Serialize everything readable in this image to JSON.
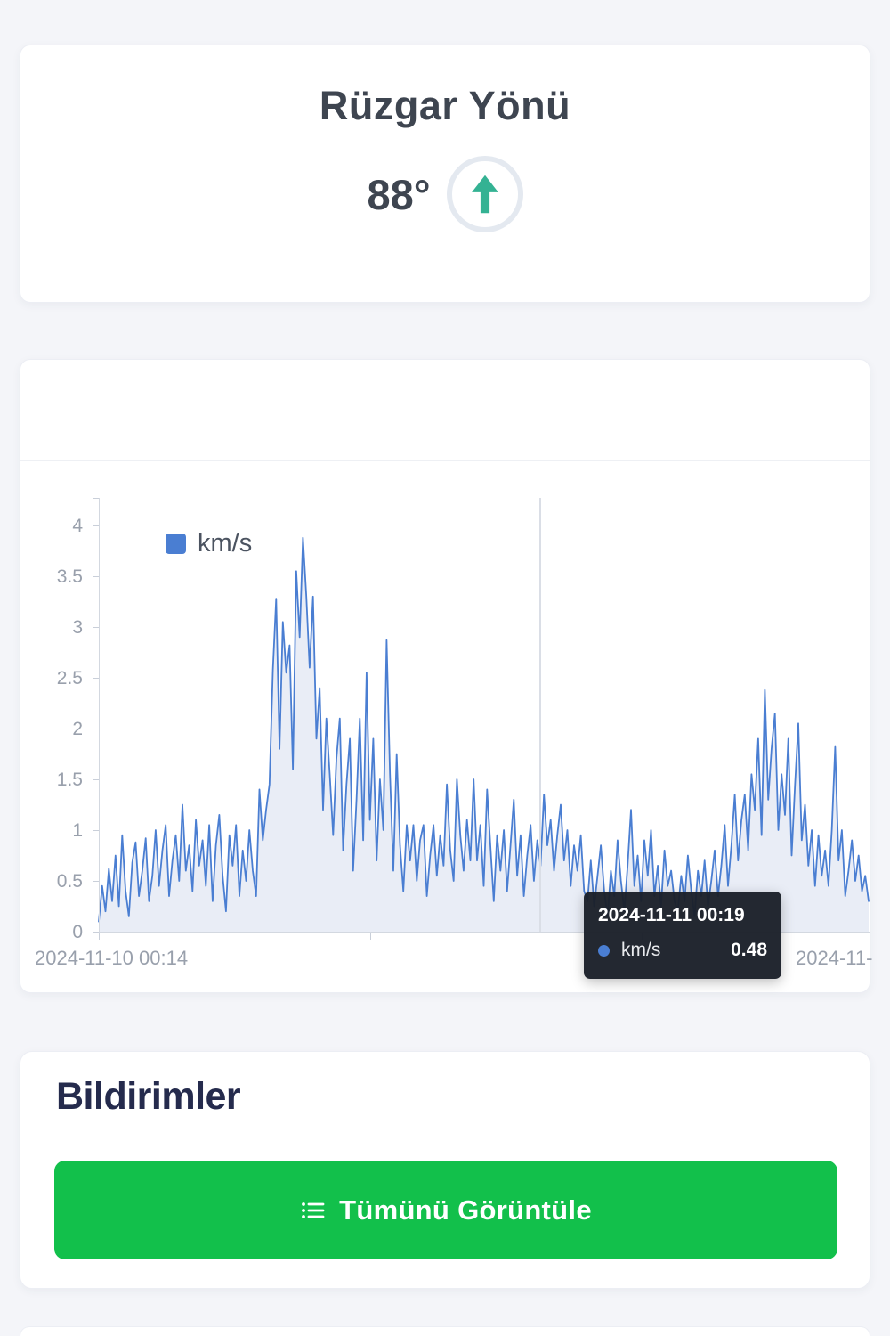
{
  "colors": {
    "page_bg": "#f4f5f9",
    "accent_blue": "#4a7ed2",
    "area_fill": "#e9edf6",
    "teal_arrow": "#34b293",
    "button_green": "#12c04b",
    "tooltip_bg": "#1a1f29",
    "dark_navy": "#252b4d"
  },
  "wind_card": {
    "title": "Rüzgar Yönü",
    "degrees": "88°",
    "arrow_icon": "up-arrow-icon"
  },
  "chart_data": {
    "type": "area",
    "title": "",
    "legend_label": "km/s",
    "legend_position": "top-left-inside",
    "grid": false,
    "ylim": [
      0,
      4
    ],
    "y_ticks": [
      0,
      0.5,
      1,
      1.5,
      2,
      2.5,
      3,
      3.5,
      4
    ],
    "y_tick_labels": [
      "0",
      "0.5",
      "1",
      "1.5",
      "2",
      "2.5",
      "3",
      "3.5",
      "4"
    ],
    "x_axis_labels": {
      "left": "2024-11-10 00:14",
      "right": "2024-11-"
    },
    "tooltip": {
      "title": "2024-11-11 00:19",
      "series": "km/s",
      "value": "0.48"
    },
    "series": [
      {
        "name": "km/s",
        "color": "#4a7ed2",
        "fill": "#e9edf6",
        "values": [
          0.1,
          0.45,
          0.2,
          0.62,
          0.3,
          0.75,
          0.25,
          0.95,
          0.4,
          0.15,
          0.68,
          0.88,
          0.35,
          0.6,
          0.92,
          0.3,
          0.55,
          1.0,
          0.45,
          0.8,
          1.05,
          0.35,
          0.7,
          0.95,
          0.5,
          1.25,
          0.6,
          0.85,
          0.4,
          1.1,
          0.65,
          0.9,
          0.45,
          1.05,
          0.3,
          0.85,
          1.15,
          0.55,
          0.2,
          0.95,
          0.65,
          1.05,
          0.35,
          0.8,
          0.5,
          1.0,
          0.6,
          0.35,
          1.4,
          0.9,
          1.2,
          1.45,
          2.58,
          3.28,
          1.8,
          3.05,
          2.55,
          2.82,
          1.6,
          3.55,
          2.9,
          3.88,
          3.3,
          2.6,
          3.3,
          1.9,
          2.4,
          1.2,
          2.1,
          1.55,
          0.95,
          1.7,
          2.1,
          0.8,
          1.45,
          1.9,
          0.6,
          1.3,
          2.1,
          0.9,
          2.55,
          1.1,
          1.9,
          0.7,
          1.5,
          1.0,
          2.87,
          1.55,
          0.6,
          1.75,
          0.85,
          0.4,
          1.05,
          0.7,
          1.05,
          0.5,
          0.9,
          1.05,
          0.35,
          0.75,
          1.05,
          0.55,
          0.95,
          0.65,
          1.45,
          0.8,
          0.5,
          1.5,
          0.95,
          0.6,
          1.1,
          0.7,
          1.5,
          0.7,
          1.05,
          0.45,
          1.4,
          0.85,
          0.3,
          0.95,
          0.6,
          1.0,
          0.4,
          0.85,
          1.3,
          0.55,
          0.95,
          0.35,
          0.75,
          1.05,
          0.5,
          0.9,
          0.65,
          1.35,
          0.85,
          1.1,
          0.6,
          0.95,
          1.25,
          0.7,
          1.0,
          0.45,
          0.85,
          0.6,
          0.95,
          0.4,
          0.3,
          0.7,
          0.25,
          0.55,
          0.85,
          0.4,
          0.15,
          0.6,
          0.35,
          0.9,
          0.5,
          0.2,
          0.65,
          1.2,
          0.45,
          0.75,
          0.3,
          0.9,
          0.55,
          1.0,
          0.35,
          0.65,
          0.25,
          0.8,
          0.45,
          0.6,
          0.3,
          0.2,
          0.55,
          0.3,
          0.75,
          0.4,
          0.15,
          0.6,
          0.35,
          0.7,
          0.25,
          0.5,
          0.8,
          0.35,
          0.65,
          1.05,
          0.45,
          0.85,
          1.35,
          0.7,
          1.1,
          1.35,
          0.8,
          1.55,
          1.2,
          1.9,
          0.95,
          2.38,
          1.3,
          1.8,
          2.15,
          1.0,
          1.55,
          1.15,
          1.9,
          0.75,
          1.45,
          2.05,
          0.9,
          1.25,
          0.65,
          1.0,
          0.45,
          0.95,
          0.55,
          0.8,
          0.45,
          1.0,
          1.82,
          0.7,
          1.0,
          0.35,
          0.6,
          0.9,
          0.5,
          0.75,
          0.4,
          0.55,
          0.3
        ]
      }
    ]
  },
  "notifications_card": {
    "title": "Bildirimler",
    "button_label": "Tümünü Görüntüle",
    "button_icon": "list-icon"
  }
}
